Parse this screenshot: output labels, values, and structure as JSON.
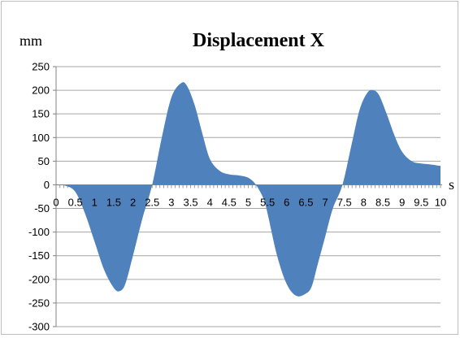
{
  "chart_data": {
    "type": "area",
    "title": "Displacement X",
    "ylabel": "mm",
    "xlabel": "s",
    "ylim": [
      -300,
      250
    ],
    "xlim": [
      0,
      10
    ],
    "yticks": [
      250,
      200,
      150,
      100,
      50,
      0,
      -50,
      -100,
      -150,
      -200,
      -250,
      -300
    ],
    "xticks": [
      0,
      0.5,
      1,
      1.5,
      2,
      2.5,
      3,
      3.5,
      4,
      4.5,
      5,
      5.5,
      6,
      6.5,
      7,
      7.5,
      8,
      8.5,
      9,
      9.5,
      10
    ],
    "grid": true,
    "fill_color": "#4f81bd",
    "series": [
      {
        "x": [
          0,
          0.25,
          0.5,
          0.75,
          1.0,
          1.25,
          1.5,
          1.65,
          1.8,
          2.0,
          2.25,
          2.5,
          2.75,
          3.0,
          3.25,
          3.4,
          3.6,
          3.8,
          4.0,
          4.25,
          4.5,
          4.75,
          5.0,
          5.2,
          5.4,
          5.5,
          5.75,
          6.0,
          6.25,
          6.5,
          6.65,
          6.8,
          7.0,
          7.2,
          7.45,
          7.7,
          7.9,
          8.1,
          8.25,
          8.4,
          8.6,
          8.8,
          9.0,
          9.25,
          9.5,
          9.75,
          10.0
        ],
        "values": [
          0,
          -2,
          -15,
          -60,
          -120,
          -180,
          -218,
          -225,
          -210,
          -150,
          -70,
          0,
          100,
          185,
          215,
          210,
          170,
          110,
          55,
          30,
          22,
          20,
          15,
          0,
          -30,
          -60,
          -150,
          -210,
          -235,
          -230,
          -215,
          -170,
          -110,
          -50,
          0,
          90,
          160,
          195,
          200,
          190,
          150,
          105,
          70,
          50,
          45,
          43,
          40
        ]
      }
    ]
  }
}
